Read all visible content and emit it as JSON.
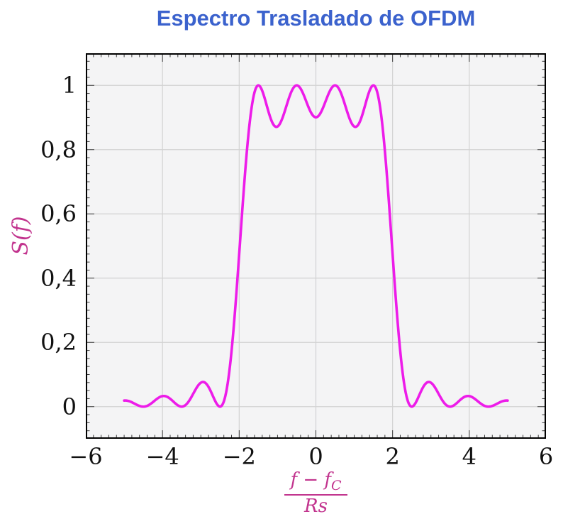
{
  "title": {
    "text": "Espectro Trasladado de OFDM"
  },
  "colors": {
    "title": "#3B62CD",
    "curve": "#ED1CE9",
    "axis_labels": "#C2348E",
    "grid": "#d2d2d2",
    "ticks": "#3a3a3a",
    "frame": "#000000",
    "plot_bg": "#f4f4f5",
    "page_bg": "#ffffff",
    "tick_text": "#111111"
  },
  "axes": {
    "y_label": "S(f)",
    "x_label": {
      "numerator_main": "f − f",
      "numerator_sub": "C",
      "denominator": "Rs"
    }
  },
  "chart_data": {
    "type": "line",
    "title": "Espectro Trasladado de OFDM",
    "xlabel": "(f − f_C) / Rs",
    "ylabel": "S(f)",
    "xlim": [
      -6,
      6
    ],
    "ylim": [
      -0.1,
      1.1
    ],
    "x_ticks": [
      -6,
      -4,
      -2,
      0,
      2,
      4,
      6
    ],
    "x_tick_labels": [
      "−6",
      "−4",
      "−2",
      "0",
      "2",
      "4",
      "6"
    ],
    "x_minor_tick_step": 0.2,
    "y_ticks": [
      0,
      0.2,
      0.4,
      0.6,
      0.8,
      1
    ],
    "y_tick_labels": [
      "0",
      "0,2",
      "0,4",
      "0,6",
      "0,8",
      "1"
    ],
    "y_minor_tick_step": 0.025,
    "grid": true,
    "legend": false,
    "series": [
      {
        "name": "S(f)",
        "color": "#ED1CE9",
        "line_width": 3.6,
        "model": {
          "type": "sum_of_sinc_squared",
          "subcarriers": [
            -1.5,
            -0.5,
            0.5,
            1.5
          ],
          "x_range": [
            -5,
            5
          ],
          "sample_step": 0.02
        },
        "key_points": [
          [
            -5,
            0.019
          ],
          [
            -4.5,
            0
          ],
          [
            -4,
            0.033
          ],
          [
            -3.5,
            0
          ],
          [
            -3,
            0.075
          ],
          [
            -2.5,
            0
          ],
          [
            -2,
            0.475
          ],
          [
            -1.5,
            1.0
          ],
          [
            -1,
            0.872
          ],
          [
            -0.5,
            1.0
          ],
          [
            0,
            0.901
          ],
          [
            0.5,
            1.0
          ],
          [
            1,
            0.872
          ],
          [
            1.5,
            1.0
          ],
          [
            2,
            0.475
          ],
          [
            2.5,
            0
          ],
          [
            3,
            0.075
          ],
          [
            3.5,
            0
          ],
          [
            4,
            0.033
          ],
          [
            4.5,
            0
          ],
          [
            5,
            0.019
          ]
        ]
      }
    ]
  }
}
